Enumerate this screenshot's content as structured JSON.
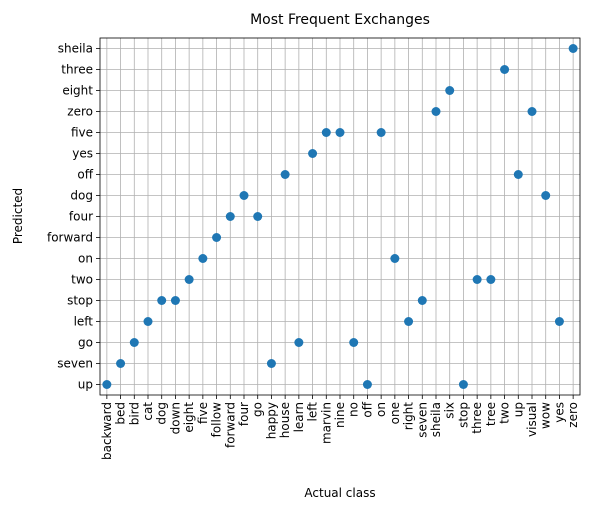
{
  "chart_data": {
    "type": "scatter",
    "title": "Most Frequent Exchanges",
    "xlabel": "Actual class",
    "ylabel": "Predicted",
    "grid": true,
    "marker_color": "#1f77b4",
    "x_categories": [
      "backward",
      "bed",
      "bird",
      "cat",
      "dog",
      "down",
      "eight",
      "five",
      "follow",
      "forward",
      "four",
      "go",
      "happy",
      "house",
      "learn",
      "left",
      "marvin",
      "nine",
      "no",
      "off",
      "on",
      "one",
      "right",
      "seven",
      "sheila",
      "six",
      "stop",
      "three",
      "tree",
      "two",
      "up",
      "visual",
      "wow",
      "yes",
      "zero"
    ],
    "y_categories": [
      "up",
      "seven",
      "go",
      "left",
      "stop",
      "two",
      "on",
      "forward",
      "four",
      "dog",
      "off",
      "yes",
      "five",
      "zero",
      "eight",
      "three",
      "sheila"
    ],
    "points": [
      {
        "x": "backward",
        "y": "up"
      },
      {
        "x": "bed",
        "y": "seven"
      },
      {
        "x": "bird",
        "y": "go"
      },
      {
        "x": "cat",
        "y": "left"
      },
      {
        "x": "dog",
        "y": "stop"
      },
      {
        "x": "down",
        "y": "stop"
      },
      {
        "x": "eight",
        "y": "two"
      },
      {
        "x": "five",
        "y": "on"
      },
      {
        "x": "follow",
        "y": "forward"
      },
      {
        "x": "forward",
        "y": "four"
      },
      {
        "x": "four",
        "y": "dog"
      },
      {
        "x": "go",
        "y": "four"
      },
      {
        "x": "happy",
        "y": "seven"
      },
      {
        "x": "house",
        "y": "off"
      },
      {
        "x": "learn",
        "y": "go"
      },
      {
        "x": "left",
        "y": "yes"
      },
      {
        "x": "marvin",
        "y": "five"
      },
      {
        "x": "nine",
        "y": "five"
      },
      {
        "x": "no",
        "y": "go"
      },
      {
        "x": "off",
        "y": "up"
      },
      {
        "x": "on",
        "y": "five"
      },
      {
        "x": "one",
        "y": "on"
      },
      {
        "x": "right",
        "y": "left"
      },
      {
        "x": "seven",
        "y": "stop"
      },
      {
        "x": "sheila",
        "y": "zero"
      },
      {
        "x": "six",
        "y": "eight"
      },
      {
        "x": "stop",
        "y": "up"
      },
      {
        "x": "three",
        "y": "two"
      },
      {
        "x": "tree",
        "y": "two"
      },
      {
        "x": "two",
        "y": "three"
      },
      {
        "x": "up",
        "y": "off"
      },
      {
        "x": "visual",
        "y": "zero"
      },
      {
        "x": "wow",
        "y": "dog"
      },
      {
        "x": "yes",
        "y": "left"
      },
      {
        "x": "zero",
        "y": "sheila"
      }
    ]
  }
}
